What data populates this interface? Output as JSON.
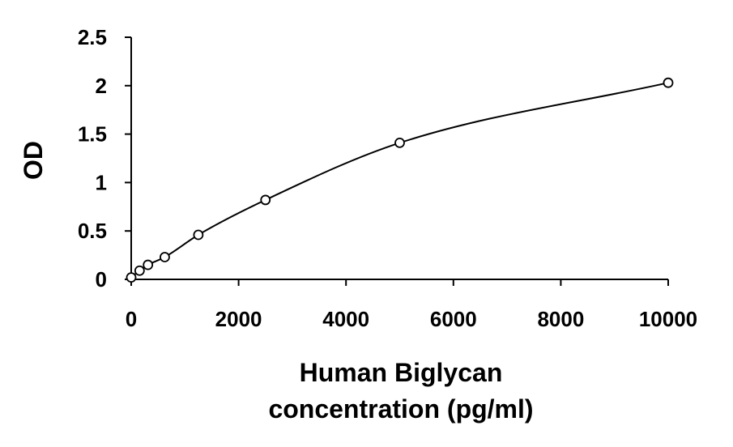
{
  "chart_data": {
    "type": "scatter",
    "title": "",
    "xlabel": [
      "Human Biglycan",
      "concentration (pg/ml)"
    ],
    "ylabel": "OD",
    "xlim": [
      0,
      10000
    ],
    "ylim": [
      0,
      2.5
    ],
    "x_ticks": [
      "0",
      "2000",
      "4000",
      "6000",
      "8000",
      "10000"
    ],
    "y_ticks": [
      "0",
      "0.5",
      "1",
      "1.5",
      "2",
      "2.5"
    ],
    "grid": false,
    "legend": "none",
    "series": [
      {
        "marker": "open-circle",
        "fit_line": "smooth-curve",
        "x": [
          0,
          156,
          312,
          625,
          1250,
          2500,
          5000,
          10000
        ],
        "y": [
          0.02,
          0.09,
          0.15,
          0.23,
          0.46,
          0.82,
          1.41,
          2.03
        ]
      }
    ],
    "colors": {
      "marks": "#000000",
      "background": "#ffffff"
    }
  }
}
